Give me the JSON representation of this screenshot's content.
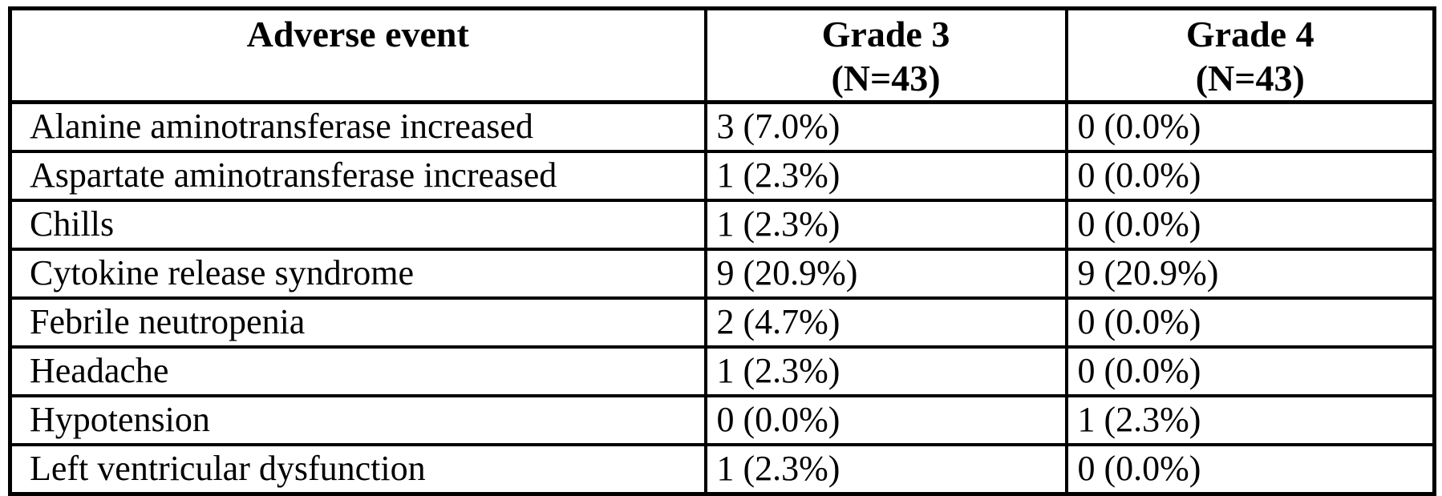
{
  "table": {
    "colors": {
      "border": "#000000",
      "text": "#000000",
      "background": "#ffffff"
    },
    "columns": [
      {
        "label": "Adverse event",
        "sublabel": ""
      },
      {
        "label": "Grade 3",
        "sublabel": "(N=43)"
      },
      {
        "label": "Grade 4",
        "sublabel": "(N=43)"
      }
    ],
    "rows": [
      {
        "event": "Alanine aminotransferase increased",
        "grade3": "3 (7.0%)",
        "grade4": "0 (0.0%)"
      },
      {
        "event": "Aspartate aminotransferase increased",
        "grade3": "1 (2.3%)",
        "grade4": "0 (0.0%)"
      },
      {
        "event": "Chills",
        "grade3": "1 (2.3%)",
        "grade4": "0 (0.0%)"
      },
      {
        "event": "Cytokine release syndrome",
        "grade3": "9 (20.9%)",
        "grade4": "9 (20.9%)"
      },
      {
        "event": "Febrile neutropenia",
        "grade3": "2 (4.7%)",
        "grade4": "0 (0.0%)"
      },
      {
        "event": "Headache",
        "grade3": "1 (2.3%)",
        "grade4": "0 (0.0%)"
      },
      {
        "event": "Hypotension",
        "grade3": "0 (0.0%)",
        "grade4": "1 (2.3%)"
      },
      {
        "event": "Left ventricular dysfunction",
        "grade3": "1 (2.3%)",
        "grade4": "0 (0.0%)"
      }
    ]
  }
}
